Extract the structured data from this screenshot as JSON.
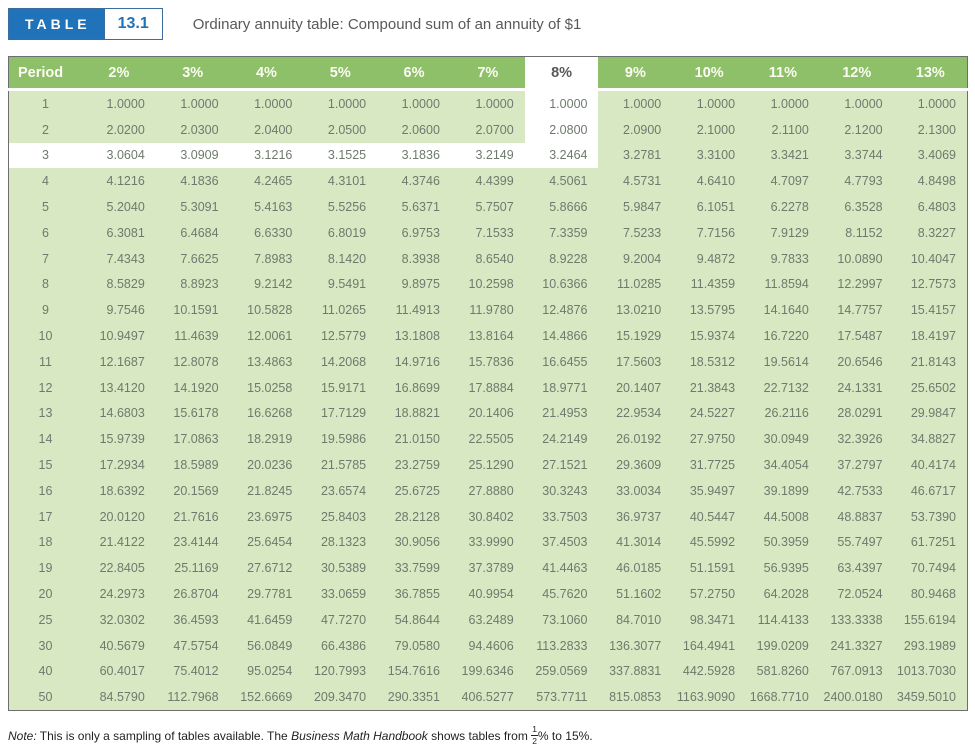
{
  "badge": {
    "table_label": "TABLE",
    "number": "13.1"
  },
  "header": {
    "title": "Ordinary annuity table: Compound sum of an annuity of $1"
  },
  "colors": {
    "header_green": "#8ec06a",
    "body_green": "#d8e8c3",
    "highlight_white": "#ffffff",
    "badge_blue": "#2173b9",
    "number_text": "#6e7a6d"
  },
  "table": {
    "period_header": "Period",
    "rates": [
      "2%",
      "3%",
      "4%",
      "5%",
      "6%",
      "7%",
      "8%",
      "9%",
      "10%",
      "11%",
      "12%",
      "13%"
    ],
    "highlight_rate": "8%",
    "highlight_period": "3",
    "rows": [
      {
        "period": "1",
        "values": [
          "1.0000",
          "1.0000",
          "1.0000",
          "1.0000",
          "1.0000",
          "1.0000",
          "1.0000",
          "1.0000",
          "1.0000",
          "1.0000",
          "1.0000",
          "1.0000"
        ]
      },
      {
        "period": "2",
        "values": [
          "2.0200",
          "2.0300",
          "2.0400",
          "2.0500",
          "2.0600",
          "2.0700",
          "2.0800",
          "2.0900",
          "2.1000",
          "2.1100",
          "2.1200",
          "2.1300"
        ]
      },
      {
        "period": "3",
        "values": [
          "3.0604",
          "3.0909",
          "3.1216",
          "3.1525",
          "3.1836",
          "3.2149",
          "3.2464",
          "3.2781",
          "3.3100",
          "3.3421",
          "3.3744",
          "3.4069"
        ]
      },
      {
        "period": "4",
        "values": [
          "4.1216",
          "4.1836",
          "4.2465",
          "4.3101",
          "4.3746",
          "4.4399",
          "4.5061",
          "4.5731",
          "4.6410",
          "4.7097",
          "4.7793",
          "4.8498"
        ]
      },
      {
        "period": "5",
        "values": [
          "5.2040",
          "5.3091",
          "5.4163",
          "5.5256",
          "5.6371",
          "5.7507",
          "5.8666",
          "5.9847",
          "6.1051",
          "6.2278",
          "6.3528",
          "6.4803"
        ]
      },
      {
        "period": "6",
        "values": [
          "6.3081",
          "6.4684",
          "6.6330",
          "6.8019",
          "6.9753",
          "7.1533",
          "7.3359",
          "7.5233",
          "7.7156",
          "7.9129",
          "8.1152",
          "8.3227"
        ]
      },
      {
        "period": "7",
        "values": [
          "7.4343",
          "7.6625",
          "7.8983",
          "8.1420",
          "8.3938",
          "8.6540",
          "8.9228",
          "9.2004",
          "9.4872",
          "9.7833",
          "10.0890",
          "10.4047"
        ]
      },
      {
        "period": "8",
        "values": [
          "8.5829",
          "8.8923",
          "9.2142",
          "9.5491",
          "9.8975",
          "10.2598",
          "10.6366",
          "11.0285",
          "11.4359",
          "11.8594",
          "12.2997",
          "12.7573"
        ]
      },
      {
        "period": "9",
        "values": [
          "9.7546",
          "10.1591",
          "10.5828",
          "11.0265",
          "11.4913",
          "11.9780",
          "12.4876",
          "13.0210",
          "13.5795",
          "14.1640",
          "14.7757",
          "15.4157"
        ]
      },
      {
        "period": "10",
        "values": [
          "10.9497",
          "11.4639",
          "12.0061",
          "12.5779",
          "13.1808",
          "13.8164",
          "14.4866",
          "15.1929",
          "15.9374",
          "16.7220",
          "17.5487",
          "18.4197"
        ]
      },
      {
        "period": "11",
        "values": [
          "12.1687",
          "12.8078",
          "13.4863",
          "14.2068",
          "14.9716",
          "15.7836",
          "16.6455",
          "17.5603",
          "18.5312",
          "19.5614",
          "20.6546",
          "21.8143"
        ]
      },
      {
        "period": "12",
        "values": [
          "13.4120",
          "14.1920",
          "15.0258",
          "15.9171",
          "16.8699",
          "17.8884",
          "18.9771",
          "20.1407",
          "21.3843",
          "22.7132",
          "24.1331",
          "25.6502"
        ]
      },
      {
        "period": "13",
        "values": [
          "14.6803",
          "15.6178",
          "16.6268",
          "17.7129",
          "18.8821",
          "20.1406",
          "21.4953",
          "22.9534",
          "24.5227",
          "26.2116",
          "28.0291",
          "29.9847"
        ]
      },
      {
        "period": "14",
        "values": [
          "15.9739",
          "17.0863",
          "18.2919",
          "19.5986",
          "21.0150",
          "22.5505",
          "24.2149",
          "26.0192",
          "27.9750",
          "30.0949",
          "32.3926",
          "34.8827"
        ]
      },
      {
        "period": "15",
        "values": [
          "17.2934",
          "18.5989",
          "20.0236",
          "21.5785",
          "23.2759",
          "25.1290",
          "27.1521",
          "29.3609",
          "31.7725",
          "34.4054",
          "37.2797",
          "40.4174"
        ]
      },
      {
        "period": "16",
        "values": [
          "18.6392",
          "20.1569",
          "21.8245",
          "23.6574",
          "25.6725",
          "27.8880",
          "30.3243",
          "33.0034",
          "35.9497",
          "39.1899",
          "42.7533",
          "46.6717"
        ]
      },
      {
        "period": "17",
        "values": [
          "20.0120",
          "21.7616",
          "23.6975",
          "25.8403",
          "28.2128",
          "30.8402",
          "33.7503",
          "36.9737",
          "40.5447",
          "44.5008",
          "48.8837",
          "53.7390"
        ]
      },
      {
        "period": "18",
        "values": [
          "21.4122",
          "23.4144",
          "25.6454",
          "28.1323",
          "30.9056",
          "33.9990",
          "37.4503",
          "41.3014",
          "45.5992",
          "50.3959",
          "55.7497",
          "61.7251"
        ]
      },
      {
        "period": "19",
        "values": [
          "22.8405",
          "25.1169",
          "27.6712",
          "30.5389",
          "33.7599",
          "37.3789",
          "41.4463",
          "46.0185",
          "51.1591",
          "56.9395",
          "63.4397",
          "70.7494"
        ]
      },
      {
        "period": "20",
        "values": [
          "24.2973",
          "26.8704",
          "29.7781",
          "33.0659",
          "36.7855",
          "40.9954",
          "45.7620",
          "51.1602",
          "57.2750",
          "64.2028",
          "72.0524",
          "80.9468"
        ]
      },
      {
        "period": "25",
        "values": [
          "32.0302",
          "36.4593",
          "41.6459",
          "47.7270",
          "54.8644",
          "63.2489",
          "73.1060",
          "84.7010",
          "98.3471",
          "114.4133",
          "133.3338",
          "155.6194"
        ]
      },
      {
        "period": "30",
        "values": [
          "40.5679",
          "47.5754",
          "56.0849",
          "66.4386",
          "79.0580",
          "94.4606",
          "113.2833",
          "136.3077",
          "164.4941",
          "199.0209",
          "241.3327",
          "293.1989"
        ]
      },
      {
        "period": "40",
        "values": [
          "60.4017",
          "75.4012",
          "95.0254",
          "120.7993",
          "154.7616",
          "199.6346",
          "259.0569",
          "337.8831",
          "442.5928",
          "581.8260",
          "767.0913",
          "1013.7030"
        ]
      },
      {
        "period": "50",
        "values": [
          "84.5790",
          "112.7968",
          "152.6669",
          "209.3470",
          "290.3351",
          "406.5277",
          "573.7711",
          "815.0853",
          "1163.9090",
          "1668.7710",
          "2400.0180",
          "3459.5010"
        ]
      }
    ]
  },
  "note": {
    "label": "Note:",
    "before_italic": " This is only a sampling of tables available. The ",
    "italic": "Business Math Handbook",
    "after_italic": " shows tables from ",
    "frac_num": "1",
    "frac_den": "2",
    "after_fraction": "% to 15%."
  }
}
